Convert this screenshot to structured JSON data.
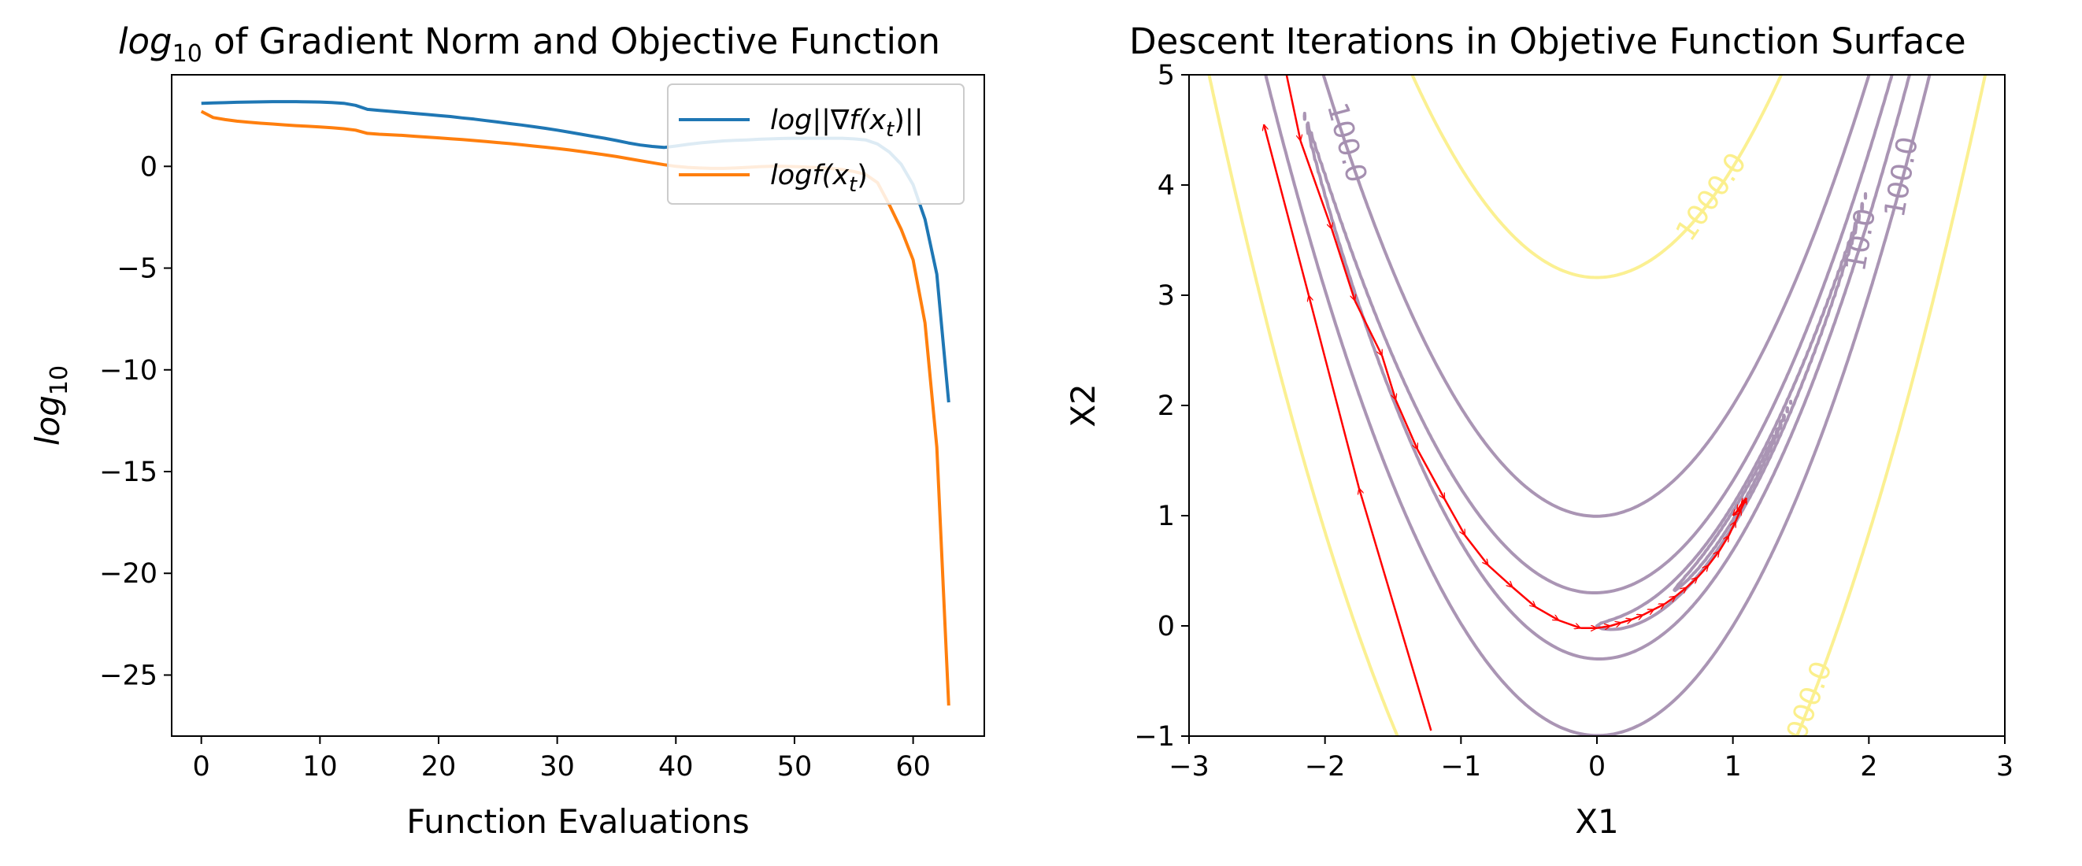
{
  "chart_data": [
    {
      "type": "line",
      "title": "log10 of Gradient Norm and Objective Function",
      "title_prefix": "log",
      "title_sub": "10",
      "title_rest": " of Gradient Norm and Objective Function",
      "xlabel": "Function Evaluations",
      "ylabel": "log10",
      "ylabel_main": "log",
      "ylabel_sub": "10",
      "xlim": [
        -2.5,
        66
      ],
      "ylim": [
        -28,
        4.5
      ],
      "xticks": [
        0,
        10,
        20,
        30,
        40,
        50,
        60
      ],
      "xtick_labels": [
        "0",
        "10",
        "20",
        "30",
        "40",
        "50",
        "60"
      ],
      "yticks": [
        0,
        -5,
        -10,
        -15,
        -20,
        -25
      ],
      "ytick_labels": [
        "0",
        "−5",
        "−10",
        "−15",
        "−20",
        "−25"
      ],
      "grid": false,
      "legend_position": "top-right",
      "series": [
        {
          "name": "log||∇f(xt)||",
          "legend_label": "log||∇f(x",
          "legend_sub": "t",
          "legend_tail": ")||",
          "color": "#1f77b4",
          "x": [
            0,
            1,
            2,
            3,
            4,
            5,
            6,
            7,
            8,
            9,
            10,
            11,
            12,
            13,
            14,
            15,
            16,
            17,
            18,
            19,
            20,
            21,
            22,
            23,
            24,
            25,
            26,
            27,
            28,
            29,
            30,
            31,
            32,
            33,
            34,
            35,
            36,
            37,
            38,
            39,
            40,
            41,
            42,
            43,
            44,
            45,
            46,
            47,
            48,
            49,
            50,
            51,
            52,
            53,
            54,
            55,
            56,
            57,
            58,
            59,
            60,
            61,
            62,
            63
          ],
          "values": [
            3.1,
            3.12,
            3.13,
            3.15,
            3.16,
            3.17,
            3.18,
            3.18,
            3.18,
            3.17,
            3.16,
            3.14,
            3.1,
            3.0,
            2.8,
            2.75,
            2.7,
            2.65,
            2.6,
            2.55,
            2.5,
            2.45,
            2.38,
            2.32,
            2.25,
            2.18,
            2.1,
            2.03,
            1.95,
            1.87,
            1.78,
            1.68,
            1.58,
            1.48,
            1.38,
            1.27,
            1.15,
            1.05,
            0.98,
            0.93,
            1.0,
            1.08,
            1.15,
            1.2,
            1.25,
            1.28,
            1.3,
            1.33,
            1.35,
            1.37,
            1.38,
            1.38,
            1.38,
            1.38,
            1.38,
            1.35,
            1.3,
            1.1,
            0.7,
            0.1,
            -0.9,
            -2.6,
            -5.3,
            -11.6
          ]
        },
        {
          "name": "logf(xt)",
          "legend_label": "logf(x",
          "legend_sub": "t",
          "legend_tail": ")",
          "color": "#ff7f0e",
          "x": [
            0,
            1,
            2,
            3,
            4,
            5,
            6,
            7,
            8,
            9,
            10,
            11,
            12,
            13,
            14,
            15,
            16,
            17,
            18,
            19,
            20,
            21,
            22,
            23,
            24,
            25,
            26,
            27,
            28,
            29,
            30,
            31,
            32,
            33,
            34,
            35,
            36,
            37,
            38,
            39,
            40,
            41,
            42,
            43,
            44,
            45,
            46,
            47,
            48,
            49,
            50,
            51,
            52,
            53,
            54,
            55,
            56,
            57,
            58,
            59,
            60,
            61,
            62,
            63
          ],
          "values": [
            2.7,
            2.4,
            2.3,
            2.22,
            2.17,
            2.12,
            2.08,
            2.04,
            2.0,
            1.97,
            1.94,
            1.9,
            1.85,
            1.78,
            1.62,
            1.58,
            1.55,
            1.52,
            1.48,
            1.44,
            1.4,
            1.36,
            1.32,
            1.27,
            1.22,
            1.17,
            1.12,
            1.06,
            1.0,
            0.94,
            0.88,
            0.81,
            0.73,
            0.65,
            0.57,
            0.48,
            0.38,
            0.28,
            0.18,
            0.08,
            0.0,
            -0.05,
            -0.08,
            -0.1,
            -0.1,
            -0.08,
            -0.05,
            -0.02,
            0.0,
            0.0,
            -0.01,
            -0.03,
            -0.06,
            -0.1,
            -0.15,
            -0.25,
            -0.4,
            -0.8,
            -1.9,
            -3.1,
            -4.6,
            -7.7,
            -13.8,
            -26.5
          ]
        }
      ]
    },
    {
      "type": "contour",
      "title": "Descent Iterations in Objetive Function Surface",
      "xlabel": "X1",
      "ylabel": "X2",
      "xlim": [
        -3,
        3
      ],
      "ylim": [
        -1,
        5
      ],
      "xticks": [
        -3,
        -2,
        -1,
        0,
        1,
        2,
        3
      ],
      "xtick_labels": [
        "−3",
        "−2",
        "−1",
        "0",
        "1",
        "2",
        "3"
      ],
      "yticks": [
        -1,
        0,
        1,
        2,
        3,
        4,
        5
      ],
      "ytick_labels": [
        "−1",
        "0",
        "1",
        "2",
        "3",
        "4",
        "5"
      ],
      "grid": false,
      "contour_colors": {
        "low": "#a58fb0",
        "high": "#fbef8c",
        "arrows": "#ff0000"
      },
      "contours": [
        {
          "level": 0.2,
          "label": ""
        },
        {
          "level": 1,
          "label": ""
        },
        {
          "level": 10,
          "label": "10.0"
        },
        {
          "level": 100,
          "label": "100.0"
        },
        {
          "level": 1000,
          "label": "1000.0"
        }
      ],
      "iterates": [
        [
          -2.3,
          5.1
        ],
        [
          -2.18,
          4.4
        ],
        [
          -1.95,
          3.6
        ],
        [
          -1.78,
          2.95
        ],
        [
          -1.58,
          2.45
        ],
        [
          -1.48,
          2.05
        ],
        [
          -1.32,
          1.6
        ],
        [
          -1.12,
          1.15
        ],
        [
          -0.97,
          0.82
        ],
        [
          -0.8,
          0.55
        ],
        [
          -0.62,
          0.35
        ],
        [
          -0.45,
          0.17
        ],
        [
          -0.28,
          0.05
        ],
        [
          -0.12,
          -0.02
        ],
        [
          0.0,
          -0.02
        ],
        [
          0.1,
          0.0
        ],
        [
          0.18,
          0.03
        ],
        [
          0.26,
          0.06
        ],
        [
          0.34,
          0.1
        ],
        [
          0.42,
          0.15
        ],
        [
          0.5,
          0.2
        ],
        [
          0.58,
          0.27
        ],
        [
          0.66,
          0.35
        ],
        [
          0.74,
          0.44
        ],
        [
          0.82,
          0.55
        ],
        [
          0.9,
          0.68
        ],
        [
          0.97,
          0.82
        ],
        [
          1.02,
          0.95
        ],
        [
          1.06,
          1.06
        ],
        [
          1.1,
          1.16
        ],
        [
          1.06,
          1.1
        ],
        [
          1.03,
          1.04
        ],
        [
          1.0,
          1.0
        ],
        [
          -1.22,
          -0.95
        ],
        [
          -1.75,
          1.25
        ],
        [
          -2.12,
          3.0
        ],
        [
          -2.45,
          4.55
        ]
      ]
    }
  ]
}
